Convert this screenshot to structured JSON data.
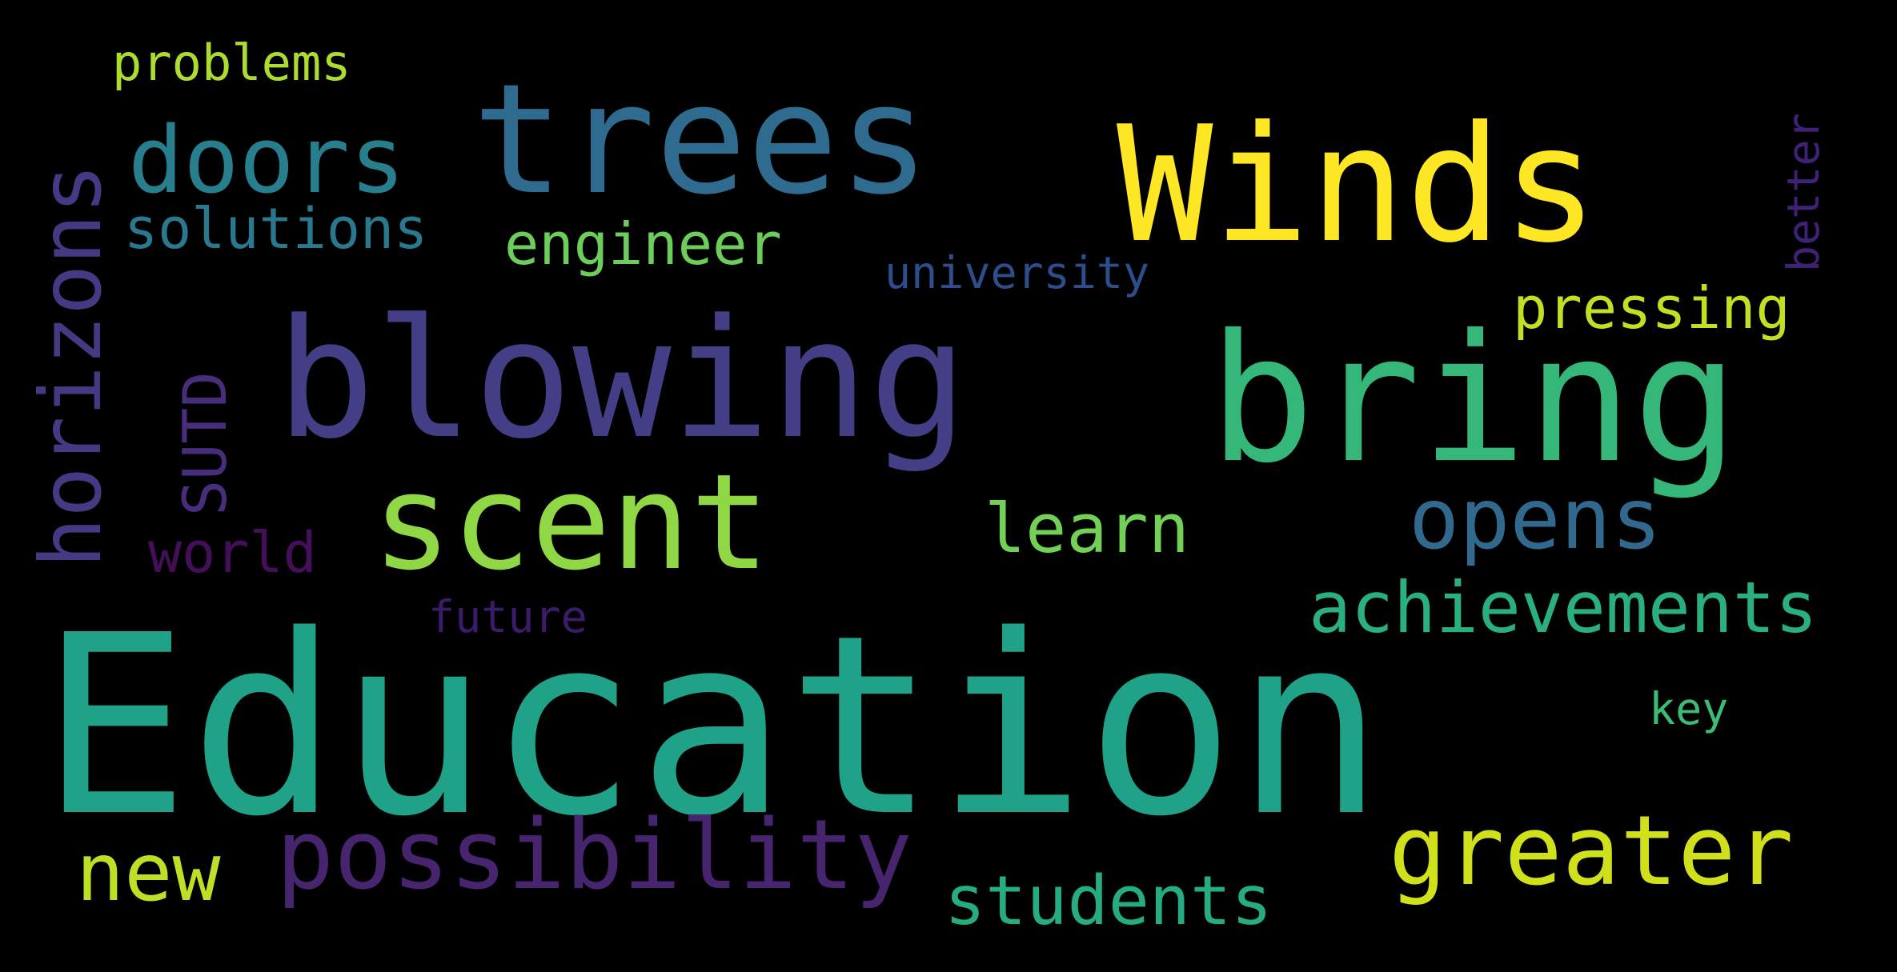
{
  "words": [
    {
      "text": "Education",
      "color": "#1fa287"
    },
    {
      "text": "blowing",
      "color": "#433e85"
    },
    {
      "text": "bring",
      "color": "#35b779"
    },
    {
      "text": "trees",
      "color": "#2f6b8e"
    },
    {
      "text": "Winds",
      "color": "#fde725"
    },
    {
      "text": "scent",
      "color": "#8fd744"
    },
    {
      "text": "possibility",
      "color": "#46256e"
    },
    {
      "text": "greater",
      "color": "#d0e11c"
    },
    {
      "text": "horizons",
      "color": "#443a83"
    },
    {
      "text": "doors",
      "color": "#277f8e"
    },
    {
      "text": "opens",
      "color": "#31688e"
    },
    {
      "text": "achievements",
      "color": "#2ab07f"
    },
    {
      "text": "new",
      "color": "#bddf26"
    },
    {
      "text": "students",
      "color": "#25ac82"
    },
    {
      "text": "learn",
      "color": "#73d056"
    },
    {
      "text": "solutions",
      "color": "#2a788e"
    },
    {
      "text": "engineer",
      "color": "#6ccd5a"
    },
    {
      "text": "pressing",
      "color": "#c2df23"
    },
    {
      "text": "SUTD",
      "color": "#472d7b"
    },
    {
      "text": "world",
      "color": "#440f58"
    },
    {
      "text": "problems",
      "color": "#addc30"
    },
    {
      "text": "university",
      "color": "#2d4d8c"
    },
    {
      "text": "future",
      "color": "#3b1c6a"
    },
    {
      "text": "better",
      "color": "#3f2278"
    },
    {
      "text": "key",
      "color": "#3bbb75"
    }
  ]
}
